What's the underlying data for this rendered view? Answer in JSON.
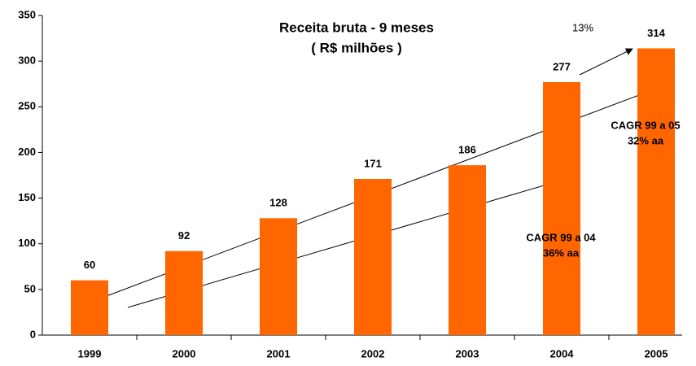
{
  "chart_data": {
    "type": "bar",
    "title": "Receita bruta - 9 meses",
    "subtitle": "( R$ milhões )",
    "categories": [
      "1999",
      "2000",
      "2001",
      "2002",
      "2003",
      "2004",
      "2005"
    ],
    "values": [
      60,
      92,
      128,
      171,
      186,
      277,
      314
    ],
    "color": "#ff6600",
    "ylim": [
      0,
      350
    ],
    "yticks": [
      0,
      50,
      100,
      150,
      200,
      250,
      300,
      350
    ],
    "grid": false,
    "annotations": [
      "13%",
      "CAGR 99 a 05",
      "32% aa",
      "CAGR 99 a 04",
      "36% aa"
    ]
  }
}
